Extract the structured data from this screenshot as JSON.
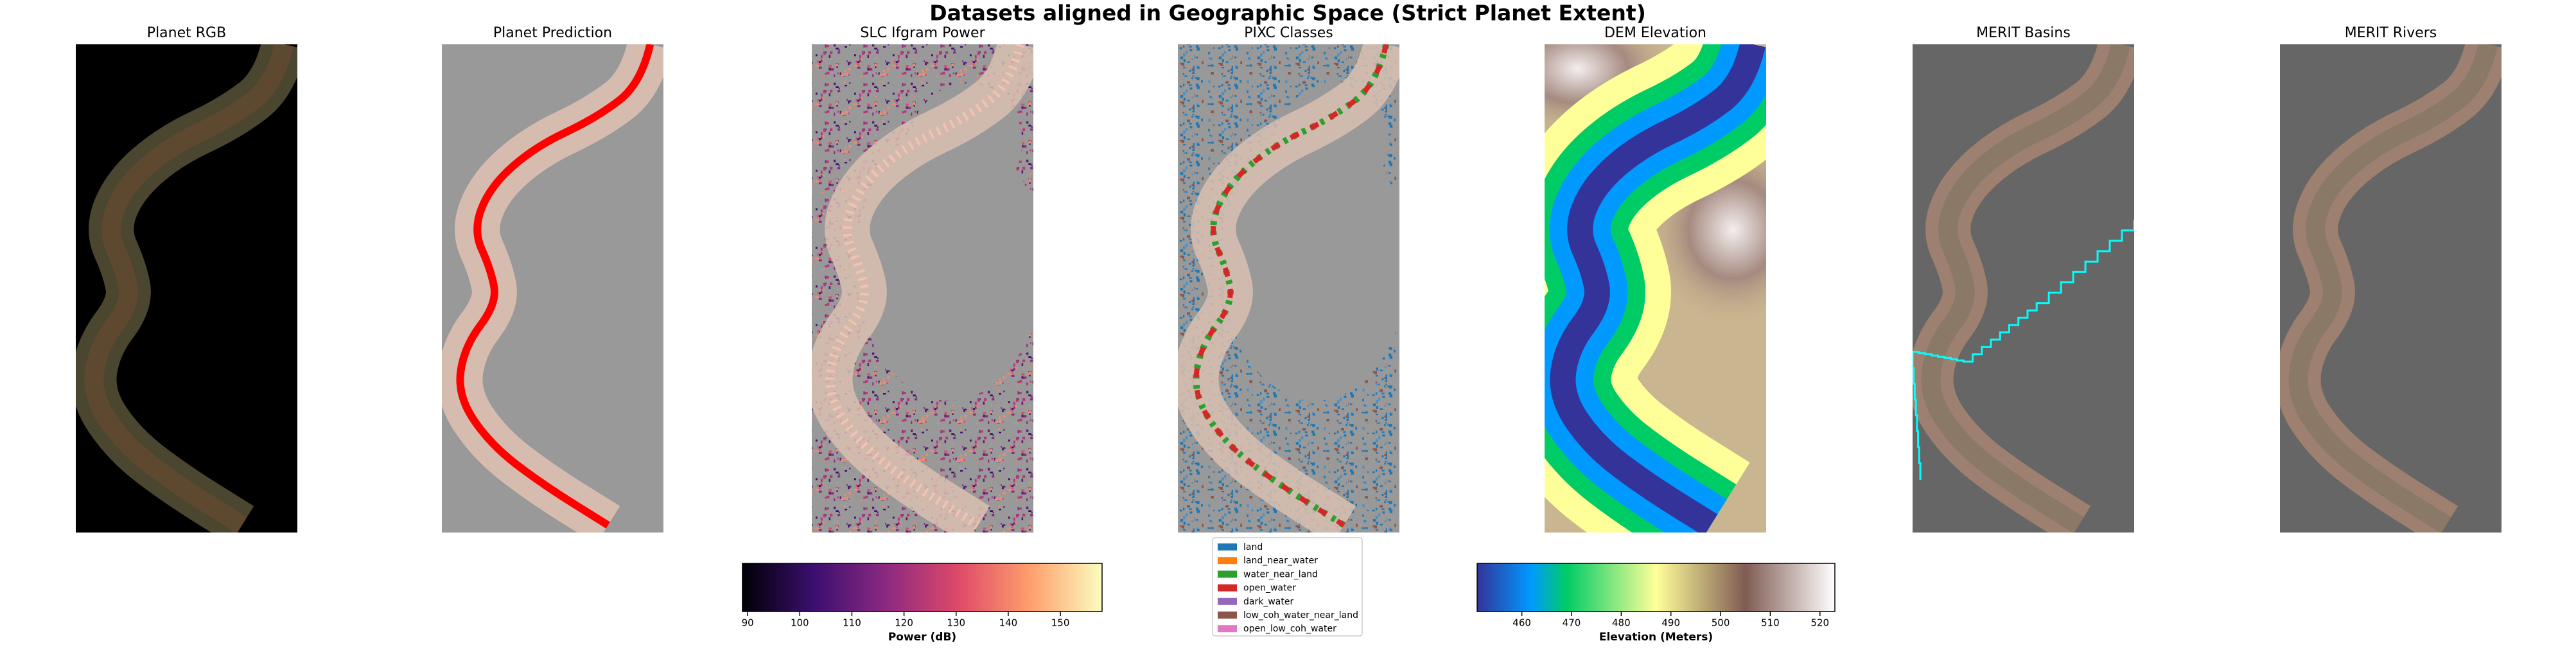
{
  "title": "Datasets aligned in Geographic Space (Strict Planet Extent)",
  "panels": [
    "Planet RGB",
    "Planet Prediction",
    "SLC Ifgram Power",
    "PIXC Classes",
    "DEM Elevation",
    "MERIT Basins",
    "MERIT Rivers"
  ],
  "colorbars": [
    {
      "label": "Power (dB)",
      "lim": [
        89,
        158
      ],
      "ticks": [
        90,
        100,
        110,
        120,
        130,
        140,
        150
      ]
    },
    {
      "label": "Elevation (Meters)",
      "lim": [
        451,
        523
      ],
      "ticks": [
        460,
        470,
        480,
        490,
        500,
        510,
        520
      ]
    }
  ],
  "legend": [
    {
      "label": "land",
      "color": "#1f77b4"
    },
    {
      "label": "land_near_water",
      "color": "#ff7f0e"
    },
    {
      "label": "water_near_land",
      "color": "#2ca02c"
    },
    {
      "label": "open_water",
      "color": "#d62728"
    },
    {
      "label": "dark_water",
      "color": "#9467bd"
    },
    {
      "label": "low_coh_water_near_land",
      "color": "#8c564b"
    },
    {
      "label": "open_low_coh_water",
      "color": "#e377c2"
    }
  ]
}
